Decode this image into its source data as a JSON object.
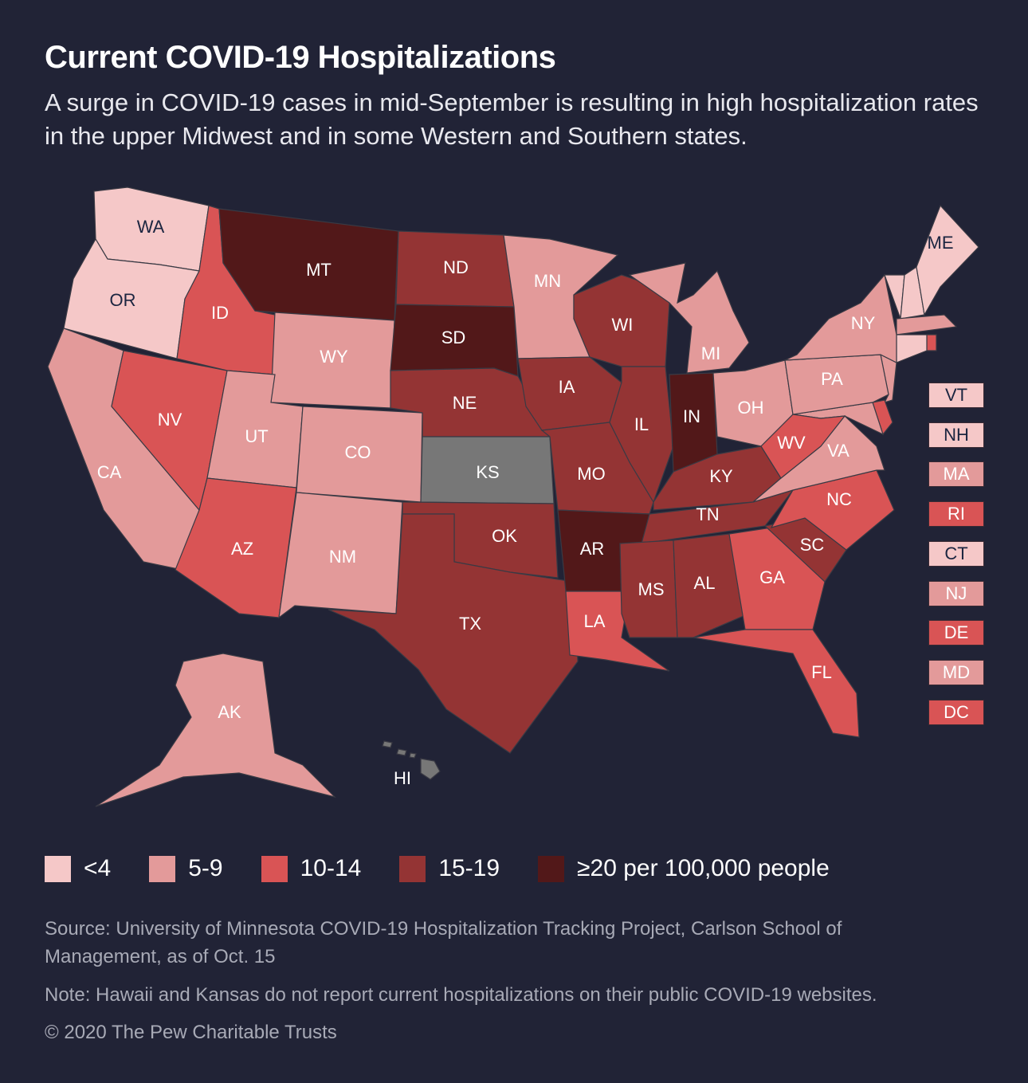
{
  "header": {
    "title": "Current COVID-19 Hospitalizations",
    "subtitle": "A surge in COVID-19 cases in mid-September is resulting in high hospitalization rates in the upper Midwest and in some Western and Southern states."
  },
  "colors": {
    "c1": "#f5c8c8",
    "c2": "#e39a9a",
    "c3": "#d95455",
    "c4": "#943434",
    "c5": "#521819",
    "na": "#777777",
    "background": "#212336",
    "dark_text": "#1b2540"
  },
  "legend": [
    {
      "label": "<4",
      "cat": "c1"
    },
    {
      "label": "5-9",
      "cat": "c2"
    },
    {
      "label": "10-14",
      "cat": "c3"
    },
    {
      "label": "15-19",
      "cat": "c4"
    },
    {
      "label": "≥20 per 100,000 people",
      "cat": "c5"
    }
  ],
  "states": [
    {
      "abbr": "WA",
      "cat": "c1"
    },
    {
      "abbr": "OR",
      "cat": "c1"
    },
    {
      "abbr": "CA",
      "cat": "c2"
    },
    {
      "abbr": "NV",
      "cat": "c3"
    },
    {
      "abbr": "ID",
      "cat": "c3"
    },
    {
      "abbr": "MT",
      "cat": "c5"
    },
    {
      "abbr": "WY",
      "cat": "c2"
    },
    {
      "abbr": "UT",
      "cat": "c2"
    },
    {
      "abbr": "CO",
      "cat": "c2"
    },
    {
      "abbr": "AZ",
      "cat": "c3"
    },
    {
      "abbr": "NM",
      "cat": "c2"
    },
    {
      "abbr": "ND",
      "cat": "c4"
    },
    {
      "abbr": "SD",
      "cat": "c5"
    },
    {
      "abbr": "NE",
      "cat": "c4"
    },
    {
      "abbr": "KS",
      "cat": "na"
    },
    {
      "abbr": "OK",
      "cat": "c4"
    },
    {
      "abbr": "TX",
      "cat": "c4"
    },
    {
      "abbr": "MN",
      "cat": "c2"
    },
    {
      "abbr": "IA",
      "cat": "c4"
    },
    {
      "abbr": "MO",
      "cat": "c4"
    },
    {
      "abbr": "AR",
      "cat": "c5"
    },
    {
      "abbr": "LA",
      "cat": "c3"
    },
    {
      "abbr": "WI",
      "cat": "c4"
    },
    {
      "abbr": "IL",
      "cat": "c4"
    },
    {
      "abbr": "MI",
      "cat": "c2"
    },
    {
      "abbr": "IN",
      "cat": "c5"
    },
    {
      "abbr": "OH",
      "cat": "c2"
    },
    {
      "abbr": "KY",
      "cat": "c4"
    },
    {
      "abbr": "TN",
      "cat": "c4"
    },
    {
      "abbr": "MS",
      "cat": "c4"
    },
    {
      "abbr": "AL",
      "cat": "c4"
    },
    {
      "abbr": "GA",
      "cat": "c3"
    },
    {
      "abbr": "FL",
      "cat": "c3"
    },
    {
      "abbr": "SC",
      "cat": "c4"
    },
    {
      "abbr": "NC",
      "cat": "c3"
    },
    {
      "abbr": "VA",
      "cat": "c2"
    },
    {
      "abbr": "WV",
      "cat": "c3"
    },
    {
      "abbr": "PA",
      "cat": "c2"
    },
    {
      "abbr": "NY",
      "cat": "c2"
    },
    {
      "abbr": "ME",
      "cat": "c1"
    },
    {
      "abbr": "AK",
      "cat": "c2"
    },
    {
      "abbr": "HI",
      "cat": "na"
    }
  ],
  "small_states": [
    {
      "abbr": "VT",
      "cat": "c1"
    },
    {
      "abbr": "NH",
      "cat": "c1"
    },
    {
      "abbr": "MA",
      "cat": "c2"
    },
    {
      "abbr": "RI",
      "cat": "c3"
    },
    {
      "abbr": "CT",
      "cat": "c1"
    },
    {
      "abbr": "NJ",
      "cat": "c2"
    },
    {
      "abbr": "DE",
      "cat": "c3"
    },
    {
      "abbr": "MD",
      "cat": "c2"
    },
    {
      "abbr": "DC",
      "cat": "c3"
    }
  ],
  "footer": {
    "source": "Source: University of Minnesota COVID-19 Hospitalization Tracking Project, Carlson School of Management, as of Oct. 15",
    "note": "Note: Hawaii and Kansas do not report current hospitalizations on their public COVID-19 websites.",
    "copyright": "© 2020 The Pew Charitable Trusts"
  }
}
